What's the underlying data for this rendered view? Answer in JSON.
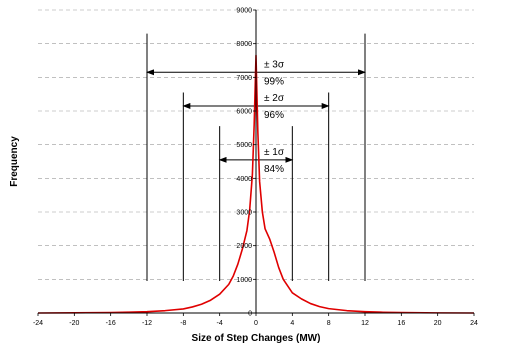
{
  "chart_data": {
    "type": "line",
    "title": "",
    "xlabel": "Size of Step Changes (MW)",
    "ylabel": "Frequency",
    "xlim": [
      -24,
      24
    ],
    "ylim": [
      0,
      9000
    ],
    "x_ticks": [
      -24,
      -20,
      -16,
      -12,
      -8,
      -4,
      0,
      4,
      8,
      12,
      16,
      20,
      24
    ],
    "y_ticks": [
      0,
      1000,
      2000,
      3000,
      4000,
      5000,
      6000,
      7000,
      8000,
      9000
    ],
    "x_tick_labels": [
      "-24",
      "-20",
      "-16",
      "-12",
      "-8",
      "-4",
      "0",
      "4",
      "8",
      "12",
      "16",
      "20",
      "24"
    ],
    "y_tick_labels": [
      "0",
      "1000",
      "2000",
      "3000",
      "4000",
      "5000",
      "6000",
      "7000",
      "8000",
      "9000"
    ],
    "grid": "horizontal dashed",
    "line_color": "#e00000",
    "series": [
      {
        "x": [
          -24,
          -20,
          -16,
          -14,
          -12,
          -10,
          -8,
          -7,
          -6,
          -5,
          -4,
          -3,
          -2.5,
          -2,
          -1.5,
          -1,
          -0.7,
          -0.4,
          -0.2,
          0,
          0.2,
          0.4,
          0.7,
          1,
          1.5,
          2,
          2.5,
          3,
          4,
          5,
          6,
          7,
          8,
          10,
          12,
          14,
          16,
          20,
          24
        ],
        "y": [
          0,
          5,
          15,
          25,
          40,
          70,
          120,
          180,
          260,
          380,
          560,
          850,
          1100,
          1450,
          1900,
          2450,
          3050,
          4100,
          5600,
          7650,
          5400,
          3900,
          3000,
          2500,
          2200,
          1800,
          1350,
          1000,
          600,
          420,
          280,
          190,
          130,
          70,
          40,
          22,
          12,
          4,
          0
        ]
      }
    ],
    "annotations": [
      {
        "label": "± 3σ",
        "pct": "99%",
        "left": -12,
        "right": 12,
        "arrow_y": 7150,
        "line_top": 8300
      },
      {
        "label": "± 2σ",
        "pct": "96%",
        "left": -8,
        "right": 8,
        "arrow_y": 6150,
        "line_top": 6550
      },
      {
        "label": "± 1σ",
        "pct": "84%",
        "left": -4,
        "right": 4,
        "arrow_y": 4550,
        "line_top": 5550
      }
    ],
    "annotation_line_bottom": 950
  }
}
